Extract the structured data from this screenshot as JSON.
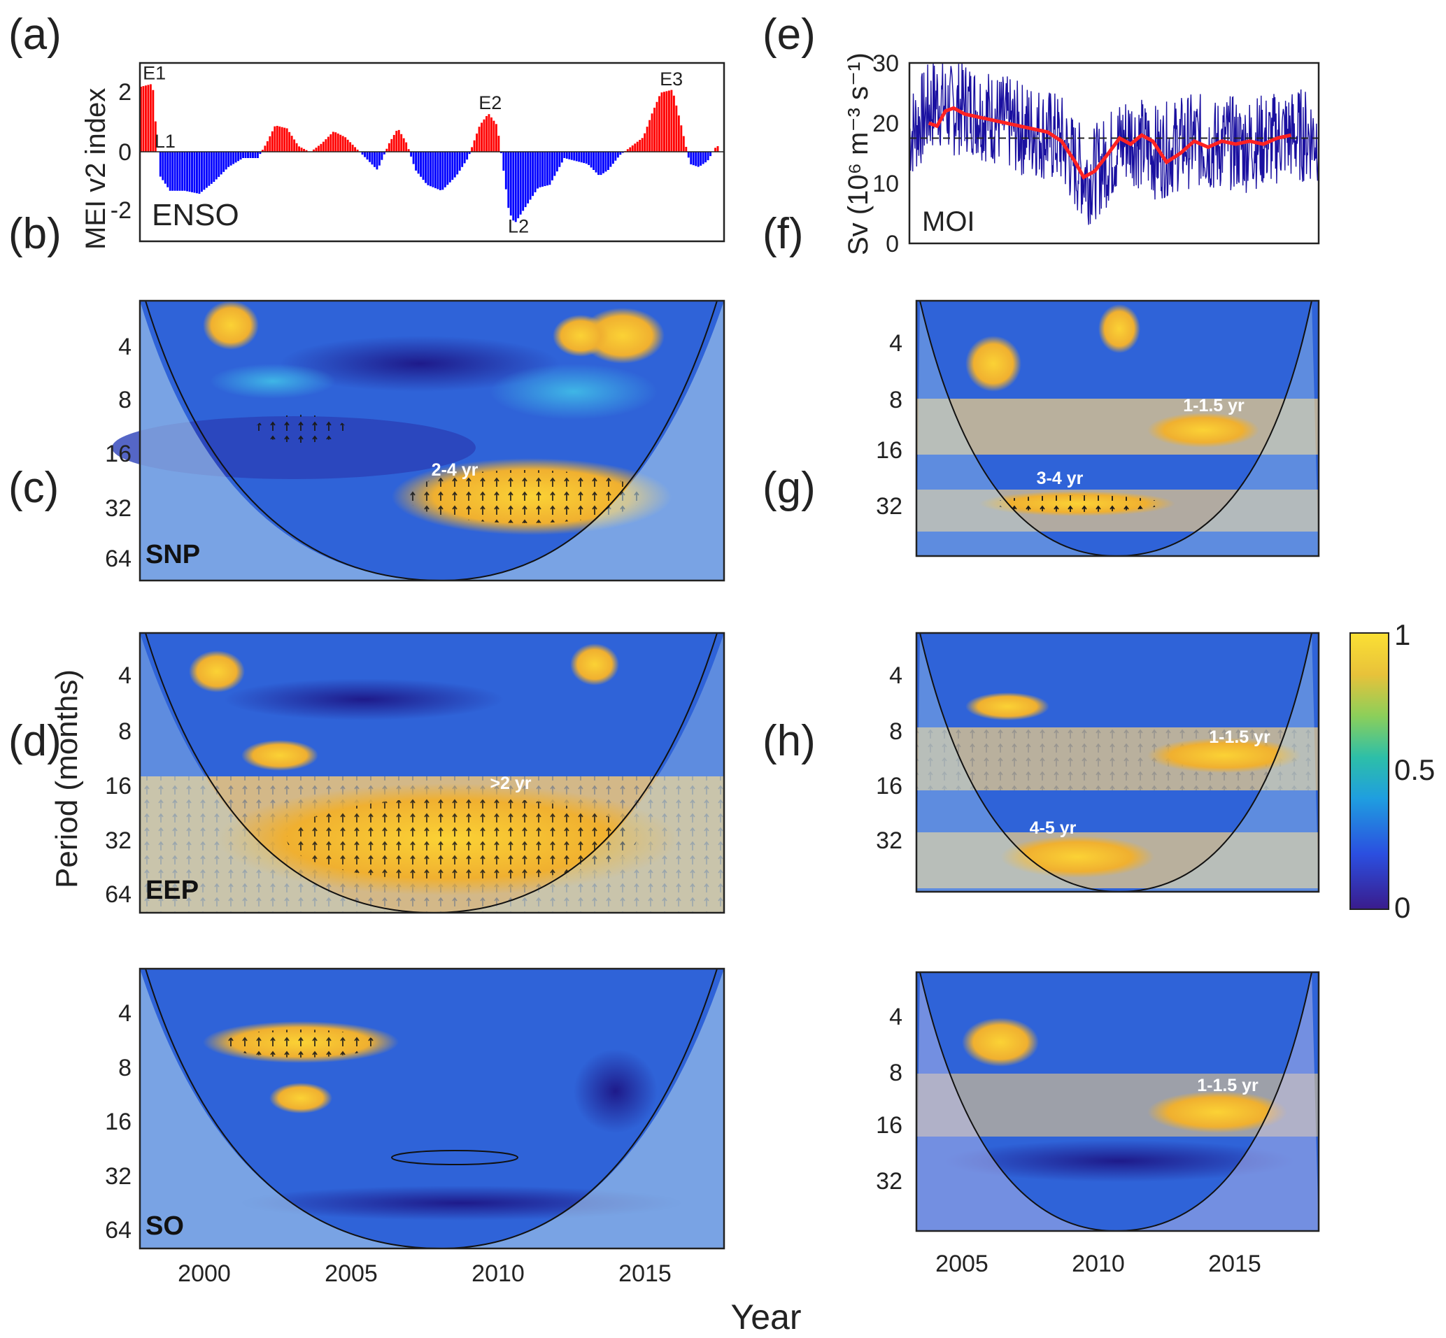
{
  "chart_data": [
    {
      "id": "a",
      "type": "bar",
      "panel_label": "(a)",
      "ylabel": "MEI v2 index",
      "series_label": "ENSO",
      "ylim": [
        -3,
        3
      ],
      "yticks": [
        2,
        0,
        -2
      ],
      "xlim": [
        1998,
        2018
      ],
      "colors": {
        "positive": "#ff0000",
        "negative": "#0000ff"
      },
      "events": [
        {
          "label": "E1",
          "x": 1998.1,
          "y": 2.45
        },
        {
          "label": "L1",
          "x": 1998.5,
          "y": 0.15
        },
        {
          "label": "E2",
          "x": 2009.6,
          "y": 1.45
        },
        {
          "label": "L2",
          "x": 2010.6,
          "y": -2.7
        },
        {
          "label": "E3",
          "x": 2015.8,
          "y": 2.25
        }
      ],
      "anchors": [
        [
          1998.0,
          2.2
        ],
        [
          1998.4,
          2.3
        ],
        [
          1998.55,
          0.4
        ],
        [
          1998.65,
          -0.8
        ],
        [
          1999.0,
          -1.3
        ],
        [
          1999.5,
          -1.3
        ],
        [
          2000.0,
          -1.4
        ],
        [
          2000.5,
          -1.0
        ],
        [
          2001.0,
          -0.5
        ],
        [
          2001.5,
          -0.2
        ],
        [
          2002.0,
          -0.2
        ],
        [
          2002.3,
          0.3
        ],
        [
          2002.6,
          0.9
        ],
        [
          2003.0,
          0.8
        ],
        [
          2003.4,
          0.2
        ],
        [
          2003.8,
          0.0
        ],
        [
          2004.2,
          0.3
        ],
        [
          2004.6,
          0.7
        ],
        [
          2005.0,
          0.5
        ],
        [
          2005.4,
          0.1
        ],
        [
          2005.8,
          -0.3
        ],
        [
          2006.1,
          -0.6
        ],
        [
          2006.5,
          0.3
        ],
        [
          2006.8,
          0.8
        ],
        [
          2007.1,
          0.3
        ],
        [
          2007.4,
          -0.6
        ],
        [
          2007.8,
          -1.1
        ],
        [
          2008.3,
          -1.3
        ],
        [
          2008.8,
          -0.8
        ],
        [
          2009.2,
          -0.2
        ],
        [
          2009.6,
          0.9
        ],
        [
          2009.9,
          1.3
        ],
        [
          2010.2,
          0.9
        ],
        [
          2010.4,
          -0.5
        ],
        [
          2010.6,
          -2.0
        ],
        [
          2010.8,
          -2.4
        ],
        [
          2011.2,
          -1.8
        ],
        [
          2011.6,
          -1.2
        ],
        [
          2012.0,
          -1.1
        ],
        [
          2012.5,
          -0.2
        ],
        [
          2012.9,
          -0.3
        ],
        [
          2013.3,
          -0.4
        ],
        [
          2013.7,
          -0.8
        ],
        [
          2014.0,
          -0.6
        ],
        [
          2014.4,
          -0.1
        ],
        [
          2014.8,
          0.2
        ],
        [
          2015.2,
          0.5
        ],
        [
          2015.5,
          1.3
        ],
        [
          2015.8,
          2.0
        ],
        [
          2016.2,
          2.1
        ],
        [
          2016.5,
          0.9
        ],
        [
          2016.8,
          -0.4
        ],
        [
          2017.1,
          -0.5
        ],
        [
          2017.4,
          -0.3
        ],
        [
          2017.7,
          0.2
        ]
      ]
    },
    {
      "id": "e",
      "type": "line",
      "panel_label": "(e)",
      "ylabel": "Sv (10⁶ m⁻³ s⁻¹)",
      "series_label": "MOI",
      "ylim": [
        0,
        30
      ],
      "yticks": [
        30,
        20,
        10,
        0
      ],
      "xlim": [
        2003,
        2017.8
      ],
      "reference_line": 17.5,
      "series": [
        {
          "color": "#1a10a0",
          "anchors": [
            [
              2003.0,
              18
            ],
            [
              2003.5,
              21
            ],
            [
              2004.0,
              24
            ],
            [
              2004.5,
              22
            ],
            [
              2005.0,
              23
            ],
            [
              2005.5,
              22
            ],
            [
              2006.0,
              21
            ],
            [
              2006.5,
              20
            ],
            [
              2007.0,
              19
            ],
            [
              2007.5,
              19
            ],
            [
              2008.0,
              18
            ],
            [
              2008.5,
              17
            ],
            [
              2009.0,
              13
            ],
            [
              2009.5,
              11
            ],
            [
              2010.0,
              13
            ],
            [
              2010.5,
              16
            ],
            [
              2011.0,
              18
            ],
            [
              2011.5,
              16
            ],
            [
              2012.0,
              15
            ],
            [
              2012.5,
              16
            ],
            [
              2013.0,
              17
            ],
            [
              2013.5,
              17
            ],
            [
              2014.0,
              16
            ],
            [
              2014.5,
              17
            ],
            [
              2015.0,
              16
            ],
            [
              2015.5,
              17
            ],
            [
              2016.0,
              17
            ],
            [
              2016.5,
              18
            ],
            [
              2017.0,
              18
            ],
            [
              2017.8,
              18
            ]
          ]
        },
        {
          "color": "#ff2222",
          "anchors": [
            [
              2003.7,
              20
            ],
            [
              2004.0,
              19.5
            ],
            [
              2004.3,
              22
            ],
            [
              2004.6,
              22.5
            ],
            [
              2005.0,
              21.5
            ],
            [
              2006.0,
              20.5
            ],
            [
              2007.0,
              19.5
            ],
            [
              2008.0,
              18.5
            ],
            [
              2008.5,
              17
            ],
            [
              2009.0,
              13.5
            ],
            [
              2009.3,
              11
            ],
            [
              2009.7,
              12
            ],
            [
              2010.2,
              15
            ],
            [
              2010.6,
              17.5
            ],
            [
              2011.0,
              16.5
            ],
            [
              2011.4,
              18
            ],
            [
              2011.8,
              17
            ],
            [
              2012.3,
              13.5
            ],
            [
              2012.8,
              15
            ],
            [
              2013.3,
              17
            ],
            [
              2013.8,
              16
            ],
            [
              2014.3,
              17
            ],
            [
              2014.8,
              16.5
            ],
            [
              2015.3,
              17
            ],
            [
              2015.8,
              16.5
            ],
            [
              2016.3,
              17.5
            ],
            [
              2016.8,
              18
            ]
          ]
        }
      ]
    },
    {
      "id": "b",
      "type": "heatmap",
      "panel_label": "(b)",
      "region": "SNP",
      "annotation": "2-4 yr",
      "xlim": [
        1998,
        2018
      ],
      "yticks": [
        "4",
        "8",
        "16",
        "32",
        "64"
      ],
      "colorbar_range": [
        0,
        1
      ]
    },
    {
      "id": "c",
      "type": "heatmap",
      "panel_label": "(c)",
      "region": "EEP",
      "annotation": ">2 yr",
      "xlim": [
        1998,
        2018
      ],
      "yticks": [
        "4",
        "8",
        "16",
        "32",
        "64"
      ],
      "colorbar_range": [
        0,
        1
      ]
    },
    {
      "id": "d",
      "type": "heatmap",
      "panel_label": "(d)",
      "region": "SO",
      "xlim": [
        1998,
        2018
      ],
      "yticks": [
        "4",
        "8",
        "16",
        "32",
        "64"
      ],
      "xticks": [
        "2000",
        "2005",
        "2010",
        "2015"
      ],
      "colorbar_range": [
        0,
        1
      ]
    },
    {
      "id": "f",
      "type": "heatmap",
      "panel_label": "(f)",
      "annotations": [
        "1-1.5 yr",
        "3-4 yr"
      ],
      "xlim": [
        2003,
        2017.8
      ],
      "yticks": [
        "4",
        "8",
        "16",
        "32"
      ],
      "colorbar_range": [
        0,
        1
      ]
    },
    {
      "id": "g",
      "type": "heatmap",
      "panel_label": "(g)",
      "annotations": [
        "1-1.5 yr",
        "4-5 yr"
      ],
      "xlim": [
        2003,
        2017.8
      ],
      "yticks": [
        "4",
        "8",
        "16",
        "32"
      ],
      "colorbar_range": [
        0,
        1
      ]
    },
    {
      "id": "h",
      "type": "heatmap",
      "panel_label": "(h)",
      "annotations": [
        "1-1.5 yr"
      ],
      "xlim": [
        2003,
        2017.8
      ],
      "yticks": [
        "4",
        "8",
        "16",
        "32"
      ],
      "xticks": [
        "2005",
        "2010",
        "2015"
      ],
      "colorbar_range": [
        0,
        1
      ]
    }
  ],
  "labels": {
    "ylabel_period": "Period (months)",
    "xlabel": "Year"
  },
  "colorbar": {
    "ticks": [
      "1",
      "0.5",
      "0"
    ],
    "range": [
      0,
      1
    ],
    "colors": [
      "#3a1c8c",
      "#2b4fe0",
      "#1f9ee0",
      "#2dbfa8",
      "#8ccf5a",
      "#e8c23a",
      "#fbe034"
    ]
  }
}
